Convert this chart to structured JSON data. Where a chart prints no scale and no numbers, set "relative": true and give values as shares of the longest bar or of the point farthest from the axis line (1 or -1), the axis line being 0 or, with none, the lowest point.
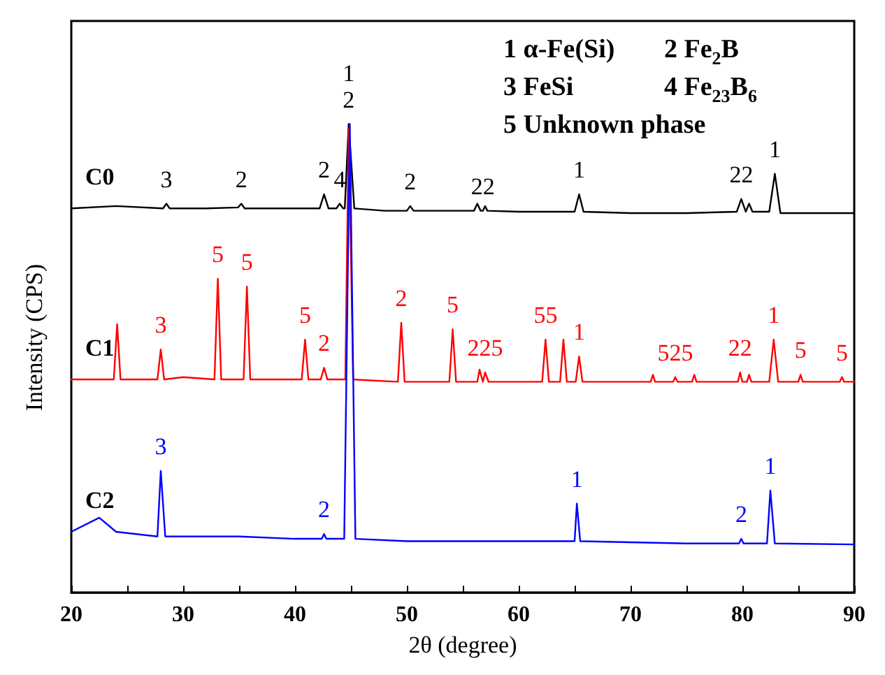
{
  "chart_data": {
    "type": "line",
    "relative": true,
    "xlabel": "2θ (degree)",
    "ylabel": "Intensity (CPS)",
    "xlim": [
      20,
      90
    ],
    "xticks": [
      20,
      {
        "value": 25,
        "label": null
      },
      30,
      {
        "value": 35,
        "label": null
      },
      40,
      {
        "value": 45,
        "label": null
      },
      50,
      {
        "value": 55,
        "label": null
      },
      60,
      {
        "value": 65,
        "label": null
      },
      70,
      {
        "value": 75,
        "label": null
      },
      80,
      {
        "value": 85,
        "label": null
      },
      90
    ],
    "grid": false,
    "legend": false,
    "marker": "none",
    "line_style": "solid",
    "series": [
      {
        "name": "C0",
        "color": "#000000",
        "x": [
          20,
          24,
          28.2,
          28.5,
          28.8,
          32,
          34.9,
          35.2,
          35.5,
          40,
          42.2,
          42.6,
          43,
          43.7,
          44.0,
          44.3,
          44.45,
          44.8,
          45.3,
          48,
          50.0,
          50.3,
          50.6,
          52,
          56,
          56.3,
          56.6,
          56.8,
          57.0,
          57.2,
          60,
          65,
          65.4,
          65.8,
          70,
          75,
          79.5,
          79.9,
          80.3,
          80.6,
          80.9,
          82.4,
          82.9,
          83.4,
          86,
          90
        ],
        "values": [
          0.82,
          0.825,
          0.82,
          0.83,
          0.82,
          0.82,
          0.822,
          0.83,
          0.82,
          0.82,
          0.82,
          0.85,
          0.82,
          0.82,
          0.83,
          0.82,
          0.82,
          1.0,
          0.82,
          0.815,
          0.815,
          0.825,
          0.815,
          0.815,
          0.815,
          0.83,
          0.815,
          0.815,
          0.825,
          0.815,
          0.813,
          0.813,
          0.85,
          0.813,
          0.81,
          0.81,
          0.813,
          0.84,
          0.813,
          0.83,
          0.813,
          0.813,
          0.894,
          0.81,
          0.81,
          0.81
        ]
      },
      {
        "name": "C1",
        "color": "#ff0000",
        "x": [
          20,
          23.8,
          24.1,
          24.4,
          27.7,
          28.0,
          28.3,
          30,
          32.8,
          33.1,
          33.4,
          35.4,
          35.7,
          36,
          40.6,
          40.9,
          41.2,
          42.3,
          42.6,
          42.9,
          44.5,
          44.8,
          45.2,
          49.2,
          49.5,
          49.8,
          53.8,
          54.1,
          54.4,
          56.3,
          56.5,
          56.8,
          57.0,
          57.3,
          62.1,
          62.4,
          62.7,
          63.7,
          64.0,
          64.3,
          65.1,
          65.4,
          65.7,
          71.8,
          72,
          72.2,
          73.8,
          74.0,
          74.2,
          75.5,
          75.7,
          75.9,
          79.6,
          79.8,
          80.0,
          80.4,
          80.6,
          80.8,
          82.4,
          82.8,
          83.2,
          85.0,
          85.2,
          85.4,
          88.7,
          88.9,
          89.1,
          90
        ],
        "values": [
          0.455,
          0.455,
          0.573,
          0.455,
          0.455,
          0.519,
          0.455,
          0.46,
          0.455,
          0.67,
          0.455,
          0.455,
          0.653,
          0.455,
          0.455,
          0.54,
          0.455,
          0.455,
          0.48,
          0.455,
          0.455,
          0.99,
          0.455,
          0.45,
          0.576,
          0.45,
          0.45,
          0.562,
          0.45,
          0.45,
          0.476,
          0.45,
          0.47,
          0.45,
          0.45,
          0.54,
          0.45,
          0.45,
          0.54,
          0.45,
          0.45,
          0.504,
          0.45,
          0.45,
          0.465,
          0.45,
          0.45,
          0.46,
          0.45,
          0.45,
          0.465,
          0.45,
          0.45,
          0.47,
          0.45,
          0.45,
          0.465,
          0.45,
          0.45,
          0.54,
          0.45,
          0.45,
          0.465,
          0.45,
          0.45,
          0.46,
          0.45,
          0.45
        ]
      },
      {
        "name": "C2",
        "color": "#0000ff",
        "x": [
          20,
          22.5,
          24,
          27.7,
          28.0,
          28.4,
          35,
          40,
          42.4,
          42.6,
          42.8,
          44.4,
          44.9,
          45.4,
          50,
          60,
          65.0,
          65.2,
          65.5,
          75,
          79.7,
          79.9,
          80.1,
          82.2,
          82.5,
          82.9,
          90
        ],
        "values": [
          0.13,
          0.16,
          0.13,
          0.12,
          0.26,
          0.12,
          0.12,
          0.115,
          0.115,
          0.125,
          0.115,
          0.115,
          1.0,
          0.115,
          0.11,
          0.11,
          0.11,
          0.19,
          0.11,
          0.105,
          0.105,
          0.115,
          0.105,
          0.105,
          0.218,
          0.105,
          0.103
        ]
      }
    ],
    "annotations": [
      "1 α-Fe(Si)",
      "2 Fe$_{2}$B",
      "3 FeSi",
      "4 Fe$_{23}$B$_{6}$",
      "5 Unknown phase",
      {
        "text": "22",
        "x": 56.8,
        "y": 0.815
      },
      {
        "text": "22",
        "x": 79.9,
        "y": 0.84
      },
      {
        "text": "225",
        "x": 57.0,
        "y": 0.47
      },
      {
        "text": "55",
        "x": 62.4,
        "y": 0.54
      },
      {
        "text": "525",
        "x": 74.0,
        "y": 0.46
      },
      {
        "text": "22",
        "x": 79.8,
        "y": 0.47
      },
      {
        "text": "3",
        "x": 28.5,
        "y": 0.83
      },
      {
        "text": "2",
        "x": 35.2,
        "y": 0.83
      },
      {
        "text": "2",
        "x": 42.6,
        "y": 0.85
      },
      {
        "text": "4",
        "x": 44.0,
        "y": 0.83
      },
      {
        "text": "1",
        "x": 44.8,
        "y": 1.0
      },
      {
        "text": "2",
        "x": 44.8,
        "y": 1.0
      },
      {
        "text": "2",
        "x": 50.3,
        "y": 0.825
      },
      {
        "text": "1",
        "x": 65.4,
        "y": 0.85
      },
      {
        "text": "1",
        "x": 82.9,
        "y": 0.894
      },
      {
        "text": "3",
        "x": 28.0,
        "y": 0.519
      },
      {
        "text": "5",
        "x": 33.1,
        "y": 0.67
      },
      {
        "text": "5",
        "x": 35.7,
        "y": 0.653
      },
      {
        "text": "5",
        "x": 40.9,
        "y": 0.54
      },
      {
        "text": "2",
        "x": 42.6,
        "y": 0.48
      },
      {
        "text": "2",
        "x": 49.5,
        "y": 0.576
      },
      {
        "text": "5",
        "x": 54.1,
        "y": 0.562
      },
      {
        "text": "1",
        "x": 65.4,
        "y": 0.504
      },
      {
        "text": "1",
        "x": 82.8,
        "y": 0.54
      },
      {
        "text": "5",
        "x": 85.2,
        "y": 0.465
      },
      {
        "text": "5",
        "x": 88.9,
        "y": 0.46
      },
      {
        "text": "3",
        "x": 28.0,
        "y": 0.26
      },
      {
        "text": "2",
        "x": 42.6,
        "y": 0.125
      },
      {
        "text": "1",
        "x": 65.2,
        "y": 0.19
      },
      {
        "text": "2",
        "x": 79.9,
        "y": 0.115
      },
      {
        "text": "1",
        "x": 82.5,
        "y": 0.218
      }
    ]
  }
}
